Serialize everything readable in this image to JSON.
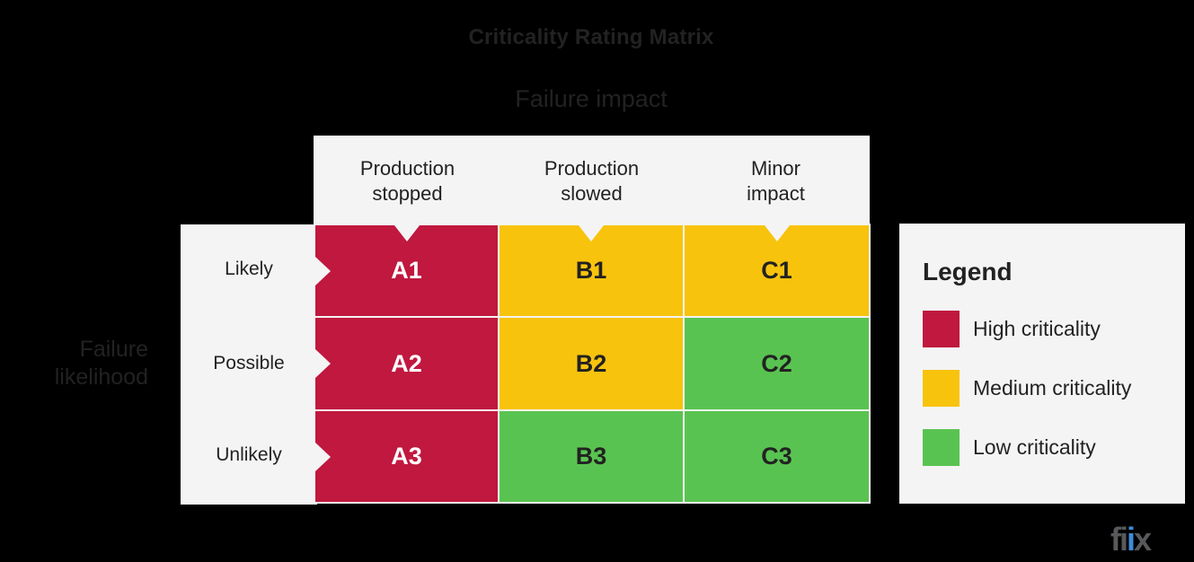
{
  "title": "Criticality Rating Matrix",
  "x_axis_label": "Failure impact",
  "y_axis_label": [
    "Failure",
    "likelihood"
  ],
  "columns": [
    {
      "line1": "Production",
      "line2": "stopped"
    },
    {
      "line1": "Production",
      "line2": "slowed"
    },
    {
      "line1": "Minor",
      "line2": "impact"
    }
  ],
  "rows": [
    "Likely",
    "Possible",
    "Unlikely"
  ],
  "cells": [
    [
      {
        "label": "A1",
        "level": "high"
      },
      {
        "label": "B1",
        "level": "medium"
      },
      {
        "label": "C1",
        "level": "medium"
      }
    ],
    [
      {
        "label": "A2",
        "level": "high"
      },
      {
        "label": "B2",
        "level": "medium"
      },
      {
        "label": "C2",
        "level": "low"
      }
    ],
    [
      {
        "label": "A3",
        "level": "high"
      },
      {
        "label": "B3",
        "level": "low"
      },
      {
        "label": "C3",
        "level": "low"
      }
    ]
  ],
  "legend": {
    "title": "Legend",
    "items": [
      {
        "label": "High criticality",
        "color": "#C0183F",
        "level": "high"
      },
      {
        "label": "Medium criticality",
        "color": "#F8C30D",
        "level": "medium"
      },
      {
        "label": "Low criticality",
        "color": "#59C351",
        "level": "low"
      }
    ]
  },
  "colors": {
    "high": "#C0183F",
    "medium": "#F8C30D",
    "low": "#59C351",
    "panel": "#F4F4F4",
    "text": "#222222",
    "text_on_high": "#FFFFFF",
    "text_on_other": "#222222"
  },
  "logo": {
    "text_main": "fi",
    "text_accent": "i",
    "text_end": "x"
  }
}
